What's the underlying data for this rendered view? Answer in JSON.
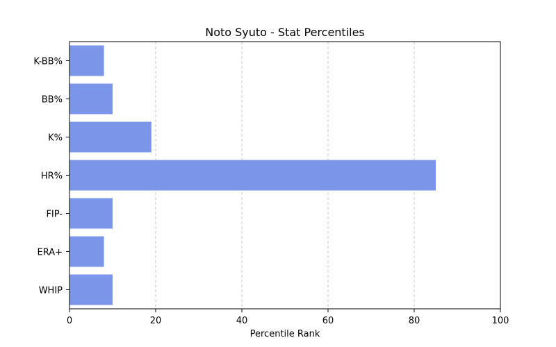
{
  "chart_data": {
    "type": "bar",
    "orientation": "horizontal",
    "title": "Noto Syuto - Stat Percentiles",
    "xlabel": "Percentile Rank",
    "ylabel": "",
    "categories": [
      "WHIP",
      "ERA+",
      "FIP-",
      "HR%",
      "K%",
      "BB%",
      "K-BB%"
    ],
    "values": [
      10,
      8,
      10,
      85,
      19,
      10,
      8
    ],
    "xlim": [
      0,
      100
    ],
    "xticks": [
      0,
      20,
      40,
      60,
      80,
      100
    ],
    "grid": "x-dashed",
    "bar_color": "#7b96e8"
  }
}
